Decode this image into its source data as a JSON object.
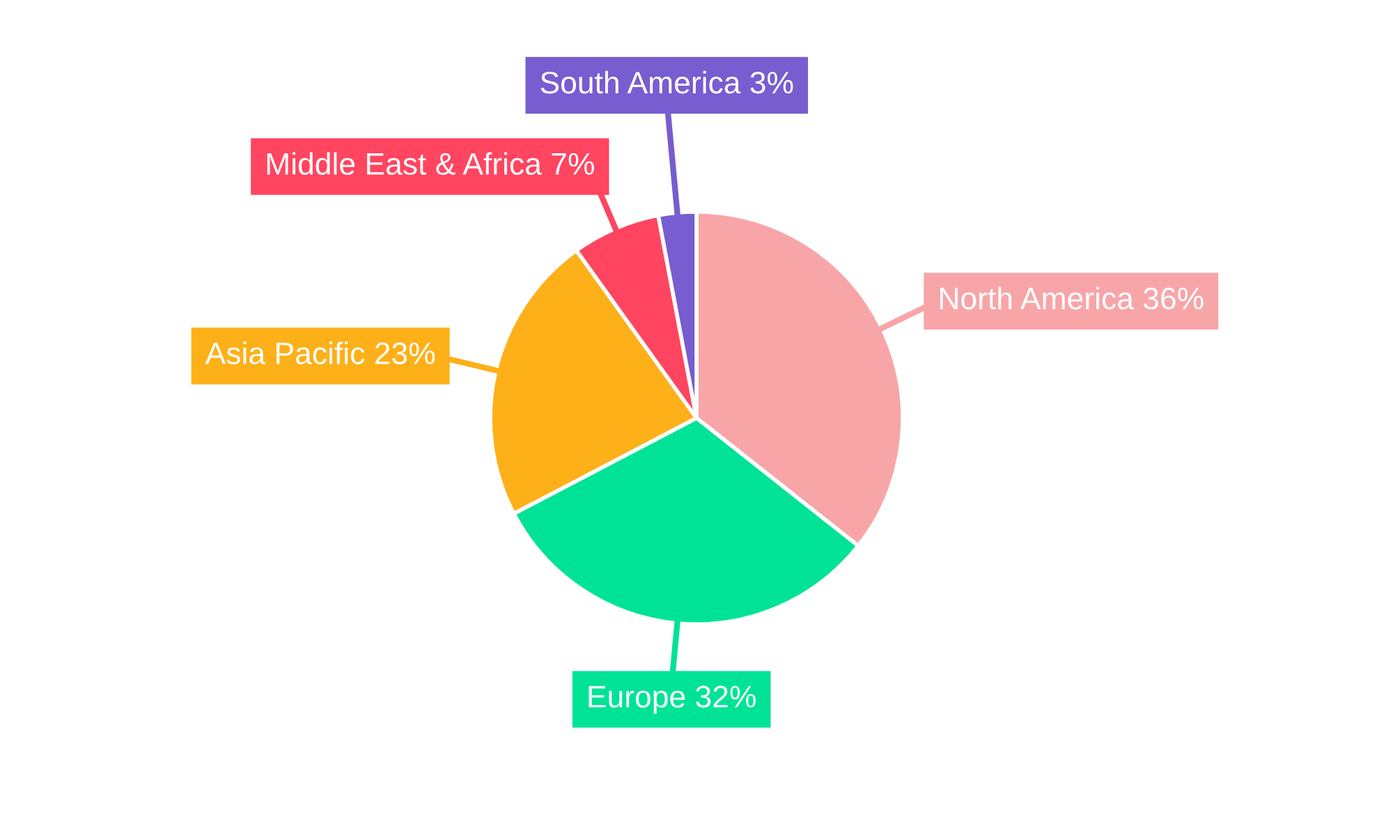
{
  "chart_data": {
    "type": "pie",
    "categories": [
      "North America",
      "Europe",
      "Asia Pacific",
      "Middle East & Africa",
      "South America"
    ],
    "values": [
      36,
      32,
      23,
      7,
      3
    ],
    "colors": [
      "#f8a5a8",
      "#00e396",
      "#feb019",
      "#ff4560",
      "#775dd0"
    ],
    "value_labels": [
      "36%",
      "32%",
      "23%",
      "7%",
      "3%"
    ],
    "legend": false
  }
}
